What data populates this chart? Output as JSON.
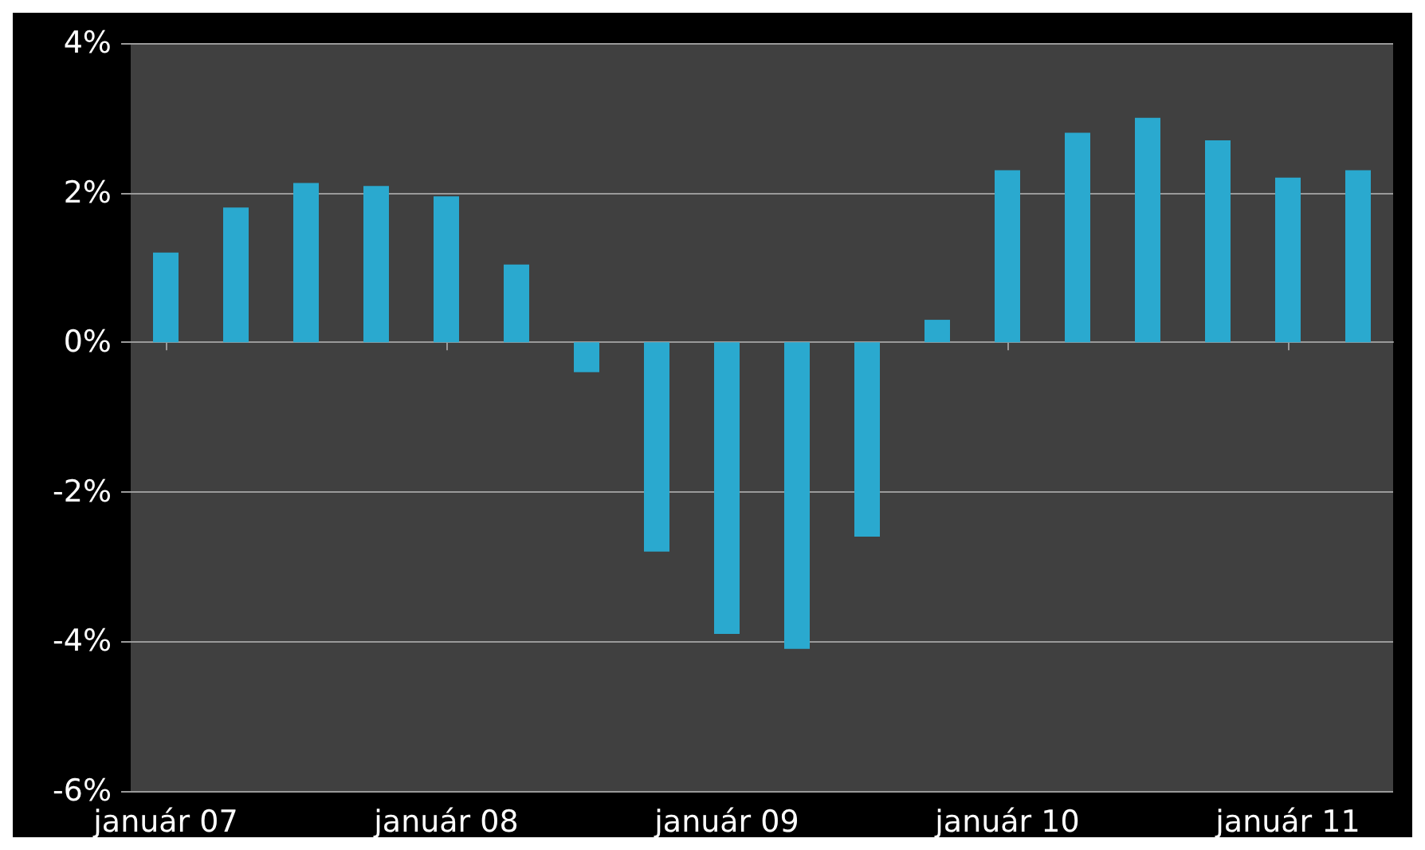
{
  "chart_data": {
    "type": "bar",
    "categories": [
      "január 07",
      null,
      null,
      null,
      "január 08",
      null,
      null,
      null,
      "január 09",
      null,
      null,
      null,
      "január 10",
      null,
      null,
      null,
      "január 11",
      null
    ],
    "values": [
      1.2,
      1.8,
      2.13,
      2.09,
      1.95,
      1.04,
      -0.4,
      -2.8,
      -3.9,
      -4.1,
      -2.6,
      0.3,
      2.3,
      2.8,
      3.0,
      2.7,
      2.2,
      2.3
    ],
    "color": "#2aa9cf",
    "ylim": [
      -6,
      4
    ],
    "yticks": [
      {
        "value": -6,
        "label": "-6%"
      },
      {
        "value": -4,
        "label": "-4%"
      },
      {
        "value": -2,
        "label": "-2%"
      },
      {
        "value": 0,
        "label": "0%"
      },
      {
        "value": 2,
        "label": "2%"
      },
      {
        "value": 4,
        "label": "4%"
      }
    ],
    "grid": "y"
  }
}
